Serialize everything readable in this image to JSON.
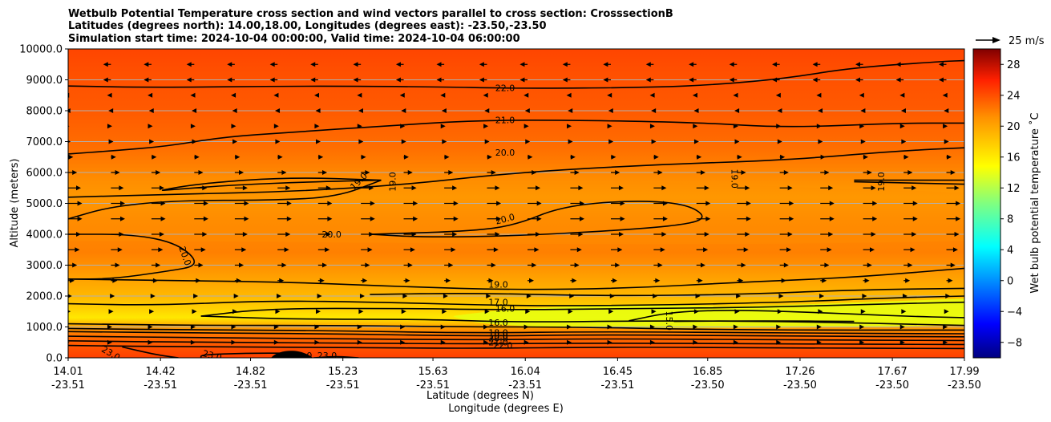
{
  "chart_data": {
    "type": "heatmap",
    "title_lines": [
      "Wetbulb Potential Temperature cross section and wind vectors parallel to cross section: CrosssectionB",
      "Latitudes (degrees north): 14.00,18.00, Longitudes (degrees east): -23.50,-23.50",
      "Simulation start time: 2024-10-04 00:00:00, Valid time: 2024-10-04 06:00:00"
    ],
    "xlabel_lat": "Latitude (degrees N)",
    "xlabel_lon": "Longitude (degrees E)",
    "ylabel": "Altitude (meters)",
    "colorbar_label": "Wet bulb potential temperature ˚C",
    "colorbar_range": [
      -10,
      30
    ],
    "colorbar_ticks": [
      -8,
      -4,
      0,
      4,
      8,
      12,
      16,
      20,
      24,
      28
    ],
    "colormap": "jet",
    "quiver_key": "25 m/s",
    "xlim": [
      14.01,
      17.99
    ],
    "ylim": [
      0,
      10000
    ],
    "x_ticks": [
      {
        "lat": "14.01",
        "lon": "-23.51"
      },
      {
        "lat": "14.42",
        "lon": "-23.51"
      },
      {
        "lat": "14.82",
        "lon": "-23.51"
      },
      {
        "lat": "15.23",
        "lon": "-23.51"
      },
      {
        "lat": "15.63",
        "lon": "-23.51"
      },
      {
        "lat": "16.04",
        "lon": "-23.51"
      },
      {
        "lat": "16.45",
        "lon": "-23.51"
      },
      {
        "lat": "16.85",
        "lon": "-23.50"
      },
      {
        "lat": "17.26",
        "lon": "-23.50"
      },
      {
        "lat": "17.67",
        "lon": "-23.50"
      },
      {
        "lat": "17.99",
        "lon": "-23.50"
      }
    ],
    "y_ticks": [
      "0.0",
      "1000.0",
      "2000.0",
      "3000.0",
      "4000.0",
      "5000.0",
      "6000.0",
      "7000.0",
      "8000.0",
      "9000.0",
      "10000.0"
    ],
    "grid": "horizontal",
    "contours": [
      {
        "level": 22,
        "points": [
          [
            14.01,
            8800
          ],
          [
            14.4,
            8750
          ],
          [
            15.0,
            8800
          ],
          [
            15.6,
            8780
          ],
          [
            16.0,
            8720
          ],
          [
            16.6,
            8750
          ],
          [
            16.9,
            8850
          ],
          [
            17.2,
            9050
          ],
          [
            17.5,
            9400
          ],
          [
            17.9,
            9600
          ],
          [
            17.99,
            9620
          ]
        ]
      },
      {
        "level": 21,
        "points": [
          [
            14.01,
            6600
          ],
          [
            14.2,
            6700
          ],
          [
            14.45,
            6850
          ],
          [
            14.7,
            7150
          ],
          [
            15.0,
            7300
          ],
          [
            15.4,
            7500
          ],
          [
            15.8,
            7680
          ],
          [
            16.2,
            7700
          ],
          [
            16.8,
            7620
          ],
          [
            17.2,
            7450
          ],
          [
            17.7,
            7600
          ],
          [
            17.99,
            7600
          ]
        ]
      },
      {
        "level": 20,
        "points": [
          [
            14.01,
            5200
          ],
          [
            14.5,
            5300
          ],
          [
            15.0,
            5380
          ],
          [
            15.5,
            5600
          ],
          [
            16.0,
            6000
          ],
          [
            16.6,
            6250
          ],
          [
            17.2,
            6400
          ],
          [
            17.7,
            6700
          ],
          [
            17.99,
            6800
          ]
        ]
      },
      {
        "level": 20,
        "points": [
          [
            14.01,
            4500
          ],
          [
            14.2,
            4900
          ],
          [
            14.5,
            5100
          ],
          [
            14.9,
            5100
          ],
          [
            15.2,
            5200
          ],
          [
            15.4,
            5750
          ]
        ]
      },
      {
        "level": 20,
        "points": [
          [
            15.4,
            5750
          ],
          [
            15.1,
            5700
          ],
          [
            14.75,
            5600
          ],
          [
            14.48,
            5450
          ],
          [
            14.4,
            5400
          ],
          [
            14.6,
            5650
          ],
          [
            15.0,
            5850
          ],
          [
            15.4,
            5750
          ]
        ]
      },
      {
        "level": 20,
        "points": [
          [
            14.01,
            4000
          ],
          [
            14.3,
            4000
          ],
          [
            14.5,
            3700
          ],
          [
            14.6,
            3000
          ],
          [
            14.45,
            2800
          ],
          [
            14.2,
            2550
          ],
          [
            14.01,
            2550
          ]
        ]
      },
      {
        "level": 20,
        "points": [
          [
            15.35,
            4000
          ],
          [
            15.6,
            3900
          ],
          [
            16.0,
            3950
          ],
          [
            16.4,
            4100
          ],
          [
            16.75,
            4300
          ],
          [
            16.85,
            4550
          ],
          [
            16.75,
            5000
          ],
          [
            16.5,
            5100
          ],
          [
            16.2,
            4900
          ],
          [
            16.0,
            4300
          ],
          [
            15.8,
            4100
          ],
          [
            15.35,
            4000
          ]
        ]
      },
      {
        "level": 19,
        "points": [
          [
            17.5,
            5750
          ],
          [
            17.99,
            5750
          ]
        ]
      },
      {
        "level": 19,
        "points": [
          [
            17.5,
            5700
          ],
          [
            17.99,
            5620
          ]
        ]
      },
      {
        "level": 19,
        "points": [
          [
            14.01,
            2550
          ],
          [
            14.5,
            2500
          ],
          [
            15.0,
            2450
          ],
          [
            15.5,
            2300
          ],
          [
            16.0,
            2200
          ],
          [
            16.5,
            2250
          ],
          [
            17.0,
            2450
          ],
          [
            17.5,
            2600
          ],
          [
            17.99,
            2900
          ]
        ]
      },
      {
        "level": 19,
        "points": [
          [
            15.35,
            2050
          ],
          [
            15.8,
            2100
          ],
          [
            16.4,
            2000
          ],
          [
            17.0,
            2050
          ],
          [
            17.5,
            2200
          ],
          [
            17.99,
            2250
          ]
        ]
      },
      {
        "level": 17,
        "points": [
          [
            14.01,
            1750
          ],
          [
            14.4,
            1700
          ],
          [
            14.9,
            1850
          ],
          [
            15.4,
            1800
          ],
          [
            16.0,
            1680
          ],
          [
            16.6,
            1700
          ],
          [
            17.2,
            1800
          ],
          [
            17.7,
            1950
          ],
          [
            17.99,
            2000
          ]
        ]
      },
      {
        "level": 16,
        "points": [
          [
            14.6,
            1350
          ],
          [
            14.9,
            1600
          ],
          [
            15.5,
            1600
          ],
          [
            16.0,
            1550
          ],
          [
            16.5,
            1600
          ],
          [
            17.0,
            1620
          ],
          [
            17.5,
            1720
          ],
          [
            17.99,
            1800
          ]
        ]
      },
      {
        "level": 16,
        "points": [
          [
            14.6,
            1350
          ],
          [
            15.0,
            1250
          ],
          [
            15.6,
            1250
          ],
          [
            16.0,
            1150
          ],
          [
            16.6,
            1200
          ],
          [
            17.2,
            1180
          ],
          [
            17.99,
            1050
          ]
        ]
      },
      {
        "level": 15,
        "points": [
          [
            16.5,
            1200
          ],
          [
            16.7,
            1500
          ],
          [
            17.0,
            1550
          ],
          [
            17.4,
            1450
          ],
          [
            17.7,
            1350
          ],
          [
            17.99,
            1300
          ]
        ]
      },
      {
        "level": 15,
        "points": [
          [
            16.7,
            1180
          ],
          [
            17.1,
            1200
          ],
          [
            17.5,
            1180
          ]
        ]
      },
      {
        "level": 16,
        "points": [
          [
            14.01,
            1100
          ],
          [
            14.6,
            1050
          ],
          [
            15.2,
            1050
          ],
          [
            15.8,
            1000
          ],
          [
            16.2,
            1000
          ],
          [
            17.0,
            900
          ],
          [
            17.99,
            900
          ]
        ]
      },
      {
        "level": 18,
        "points": [
          [
            14.01,
            950
          ],
          [
            14.6,
            900
          ],
          [
            15.2,
            880
          ],
          [
            15.8,
            800
          ],
          [
            16.4,
            850
          ],
          [
            17.2,
            800
          ],
          [
            17.99,
            780
          ]
        ]
      },
      {
        "level": 19,
        "points": [
          [
            14.01,
            850
          ],
          [
            14.6,
            800
          ],
          [
            15.2,
            780
          ],
          [
            15.8,
            700
          ],
          [
            16.4,
            750
          ],
          [
            17.2,
            700
          ],
          [
            17.99,
            680
          ]
        ]
      },
      {
        "level": 20,
        "points": [
          [
            14.01,
            700
          ],
          [
            14.6,
            650
          ],
          [
            15.2,
            620
          ],
          [
            15.8,
            580
          ],
          [
            16.4,
            620
          ],
          [
            17.2,
            580
          ],
          [
            17.99,
            560
          ]
        ]
      },
      {
        "level": 21,
        "points": [
          [
            14.01,
            550
          ],
          [
            14.6,
            500
          ],
          [
            15.2,
            480
          ],
          [
            15.8,
            450
          ],
          [
            16.4,
            480
          ],
          [
            17.2,
            450
          ],
          [
            17.99,
            430
          ]
        ]
      },
      {
        "level": 22,
        "points": [
          [
            14.01,
            400
          ],
          [
            14.6,
            350
          ],
          [
            15.2,
            340
          ],
          [
            15.8,
            300
          ],
          [
            16.4,
            350
          ],
          [
            17.2,
            320
          ],
          [
            17.99,
            300
          ]
        ]
      },
      {
        "level": 23,
        "points": [
          [
            14.25,
            350
          ],
          [
            14.4,
            100
          ],
          [
            14.5,
            0
          ]
        ]
      },
      {
        "level": 23,
        "points": [
          [
            14.6,
            0
          ],
          [
            14.6,
            100
          ],
          [
            14.8,
            150
          ],
          [
            15.0,
            150
          ]
        ]
      },
      {
        "level": 23,
        "points": [
          [
            15.1,
            0
          ],
          [
            15.2,
            50
          ],
          [
            15.3,
            0
          ]
        ]
      }
    ],
    "contour_labels": [
      {
        "text": "22.0",
        "x": 15.95,
        "y": 8740,
        "angle": 0
      },
      {
        "text": "21.0",
        "x": 15.95,
        "y": 7700,
        "angle": 0
      },
      {
        "text": "20.0",
        "x": 15.95,
        "y": 6650,
        "angle": 0
      },
      {
        "text": "19.0",
        "x": 15.3,
        "y": 5720,
        "angle": -45
      },
      {
        "text": "19.0",
        "x": 15.45,
        "y": 5700,
        "angle": -90
      },
      {
        "text": "19.0",
        "x": 16.97,
        "y": 5800,
        "angle": 90
      },
      {
        "text": "19.0",
        "x": 17.62,
        "y": 5700,
        "angle": -90
      },
      {
        "text": "20.0",
        "x": 15.95,
        "y": 4500,
        "angle": -15
      },
      {
        "text": "20.0",
        "x": 15.18,
        "y": 4000,
        "angle": 0
      },
      {
        "text": "20.0",
        "x": 14.53,
        "y": 3300,
        "angle": 70
      },
      {
        "text": "19.0",
        "x": 15.92,
        "y": 2380,
        "angle": 0
      },
      {
        "text": "17.0",
        "x": 15.92,
        "y": 1800,
        "angle": 0
      },
      {
        "text": "16.0",
        "x": 15.95,
        "y": 1600,
        "angle": 0
      },
      {
        "text": "16.0",
        "x": 15.92,
        "y": 1140,
        "angle": 0
      },
      {
        "text": "15.0",
        "x": 16.68,
        "y": 1200,
        "angle": 90
      },
      {
        "text": "18.0",
        "x": 15.92,
        "y": 820,
        "angle": 0
      },
      {
        "text": "19.0",
        "x": 15.92,
        "y": 730,
        "angle": 0
      },
      {
        "text": "20.0",
        "x": 15.92,
        "y": 640,
        "angle": 0
      },
      {
        "text": "21.0",
        "x": 15.92,
        "y": 510,
        "angle": 0
      },
      {
        "text": "22.0",
        "x": 15.94,
        "y": 400,
        "angle": 0
      },
      {
        "text": "23.0",
        "x": 14.2,
        "y": 150,
        "angle": 30
      },
      {
        "text": "23.0",
        "x": 14.65,
        "y": 80,
        "angle": 15
      },
      {
        "text": "23.0",
        "x": 15.05,
        "y": 80,
        "angle": 0
      },
      {
        "text": "23.0",
        "x": 15.16,
        "y": 80,
        "angle": 0
      }
    ],
    "wind_rows": [
      {
        "altitude": 9500,
        "u": -3
      },
      {
        "altitude": 9000,
        "u": -3
      },
      {
        "altitude": 8500,
        "u": -1.5
      },
      {
        "altitude": 8000,
        "u": -1
      },
      {
        "altitude": 7500,
        "u": 0.5
      },
      {
        "altitude": 7000,
        "u": 1
      },
      {
        "altitude": 6500,
        "u": 2
      },
      {
        "altitude": 6000,
        "u": 3.5
      },
      {
        "altitude": 5500,
        "u": 5
      },
      {
        "altitude": 5000,
        "u": 5.5
      },
      {
        "altitude": 4500,
        "u": 5.5
      },
      {
        "altitude": 4000,
        "u": 5
      },
      {
        "altitude": 3500,
        "u": 4.5
      },
      {
        "altitude": 3000,
        "u": 3.5
      },
      {
        "altitude": 2500,
        "u": 2.5
      },
      {
        "altitude": 2000,
        "u": 1.5
      },
      {
        "altitude": 1500,
        "u": 1
      },
      {
        "altitude": 1000,
        "u": 0.5
      },
      {
        "altitude": 500,
        "u": 0.5
      }
    ],
    "wind_x_positions": [
      14.01,
      14.2,
      14.38,
      14.57,
      14.75,
      14.94,
      15.12,
      15.31,
      15.5,
      15.68,
      15.87,
      16.05,
      16.24,
      16.42,
      16.61,
      16.8,
      16.98,
      17.17,
      17.35,
      17.54,
      17.72,
      17.91
    ]
  }
}
